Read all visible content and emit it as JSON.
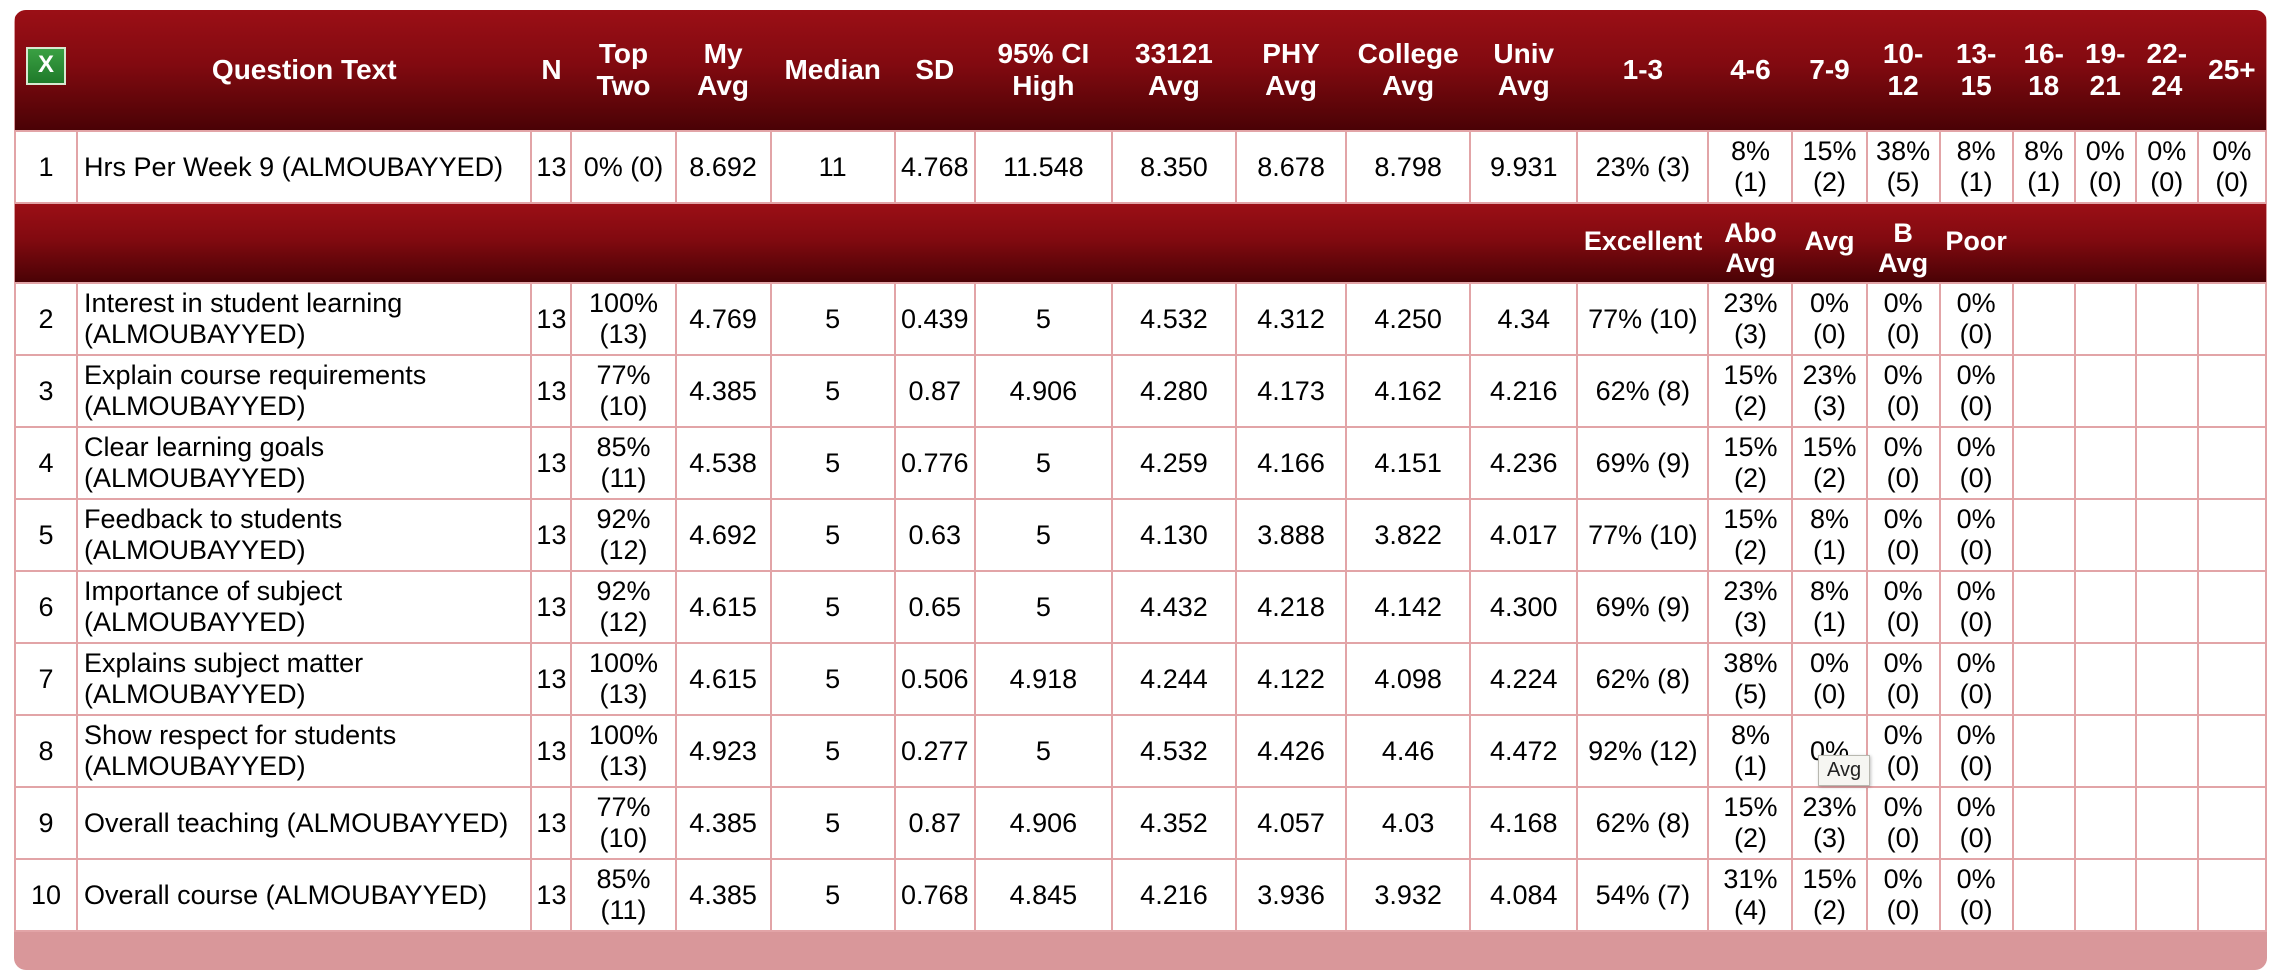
{
  "header": {
    "excel_icon": "excel-icon",
    "question_text": "Question Text",
    "n": "N",
    "top_two_1": "Top",
    "top_two_2": "Two",
    "my_avg_1": "My",
    "my_avg_2": "Avg",
    "median": "Median",
    "sd": "SD",
    "ci_1": "95% CI",
    "ci_2": "High",
    "course_avg_1": "33121",
    "course_avg_2": "Avg",
    "phy_avg_1": "PHY",
    "phy_avg_2": "Avg",
    "college_avg_1": "College",
    "college_avg_2": "Avg",
    "univ_avg_1": "Univ",
    "univ_avg_2": "Avg",
    "b1": "1-3",
    "b2": "4-6",
    "b3": "7-9",
    "b4_1": "10-",
    "b4_2": "12",
    "b5_1": "13-",
    "b5_2": "15",
    "b6_1": "16-",
    "b6_2": "18",
    "b7_1": "19-",
    "b7_2": "21",
    "b8_1": "22-",
    "b8_2": "24",
    "b9": "25+"
  },
  "header2": {
    "excellent": "Excellent",
    "above_avg_1": "Abo",
    "above_avg_2": "Avg",
    "avg": "Avg",
    "below_avg_1": "B",
    "below_avg_2": "Avg",
    "poor": "Poor"
  },
  "row1": {
    "idx": "1",
    "question": "Hrs Per Week 9 (ALMOUBAYYED)",
    "n": "13",
    "top_two": "0% (0)",
    "my_avg": "8.692",
    "median": "11",
    "sd": "4.768",
    "ci": "11.548",
    "course_avg": "8.350",
    "phy_avg": "8.678",
    "college_avg": "8.798",
    "univ_avg": "9.931",
    "b1": "23% (3)",
    "b2a": "8%",
    "b2b": "(1)",
    "b3a": "15%",
    "b3b": "(2)",
    "b4a": "38%",
    "b4b": "(5)",
    "b5a": "8%",
    "b5b": "(1)",
    "b6a": "8%",
    "b6b": "(1)",
    "b7a": "0%",
    "b7b": "(0)",
    "b8a": "0%",
    "b8b": "(0)",
    "b9a": "0%",
    "b9b": "(0)"
  },
  "rows": [
    {
      "idx": "2",
      "q1": "Interest in student learning",
      "q2": "(ALMOUBAYYED)",
      "n": "13",
      "ta": "100%",
      "tb": "(13)",
      "my_avg": "4.769",
      "median": "5",
      "sd": "0.439",
      "ci": "5",
      "course_avg": "4.532",
      "phy_avg": "4.312",
      "college_avg": "4.250",
      "univ_avg": "4.34",
      "exc": "77% (10)",
      "aa": "23%",
      "ab": "(3)",
      "va": "0%",
      "vb": "(0)",
      "ba": "0%",
      "bb": "(0)",
      "pa": "0%",
      "pb": "(0)"
    },
    {
      "idx": "3",
      "q1": "Explain course requirements",
      "q2": "(ALMOUBAYYED)",
      "n": "13",
      "ta": "77%",
      "tb": "(10)",
      "my_avg": "4.385",
      "median": "5",
      "sd": "0.87",
      "ci": "4.906",
      "course_avg": "4.280",
      "phy_avg": "4.173",
      "college_avg": "4.162",
      "univ_avg": "4.216",
      "exc": "62% (8)",
      "aa": "15%",
      "ab": "(2)",
      "va": "23%",
      "vb": "(3)",
      "ba": "0%",
      "bb": "(0)",
      "pa": "0%",
      "pb": "(0)"
    },
    {
      "idx": "4",
      "q1": "Clear learning goals",
      "q2": "(ALMOUBAYYED)",
      "n": "13",
      "ta": "85%",
      "tb": "(11)",
      "my_avg": "4.538",
      "median": "5",
      "sd": "0.776",
      "ci": "5",
      "course_avg": "4.259",
      "phy_avg": "4.166",
      "college_avg": "4.151",
      "univ_avg": "4.236",
      "exc": "69% (9)",
      "aa": "15%",
      "ab": "(2)",
      "va": "15%",
      "vb": "(2)",
      "ba": "0%",
      "bb": "(0)",
      "pa": "0%",
      "pb": "(0)"
    },
    {
      "idx": "5",
      "q1": "Feedback to students",
      "q2": "(ALMOUBAYYED)",
      "n": "13",
      "ta": "92%",
      "tb": "(12)",
      "my_avg": "4.692",
      "median": "5",
      "sd": "0.63",
      "ci": "5",
      "course_avg": "4.130",
      "phy_avg": "3.888",
      "college_avg": "3.822",
      "univ_avg": "4.017",
      "exc": "77% (10)",
      "aa": "15%",
      "ab": "(2)",
      "va": "8%",
      "vb": "(1)",
      "ba": "0%",
      "bb": "(0)",
      "pa": "0%",
      "pb": "(0)"
    },
    {
      "idx": "6",
      "q1": "Importance of subject",
      "q2": "(ALMOUBAYYED)",
      "n": "13",
      "ta": "92%",
      "tb": "(12)",
      "my_avg": "4.615",
      "median": "5",
      "sd": "0.65",
      "ci": "5",
      "course_avg": "4.432",
      "phy_avg": "4.218",
      "college_avg": "4.142",
      "univ_avg": "4.300",
      "exc": "69% (9)",
      "aa": "23%",
      "ab": "(3)",
      "va": "8%",
      "vb": "(1)",
      "ba": "0%",
      "bb": "(0)",
      "pa": "0%",
      "pb": "(0)"
    },
    {
      "idx": "7",
      "q1": "Explains subject matter",
      "q2": "(ALMOUBAYYED)",
      "n": "13",
      "ta": "100%",
      "tb": "(13)",
      "my_avg": "4.615",
      "median": "5",
      "sd": "0.506",
      "ci": "4.918",
      "course_avg": "4.244",
      "phy_avg": "4.122",
      "college_avg": "4.098",
      "univ_avg": "4.224",
      "exc": "62% (8)",
      "aa": "38%",
      "ab": "(5)",
      "va": "0%",
      "vb": "(0)",
      "ba": "0%",
      "bb": "(0)",
      "pa": "0%",
      "pb": "(0)"
    },
    {
      "idx": "8",
      "q1": "Show respect for students",
      "q2": "(ALMOUBAYYED)",
      "n": "13",
      "ta": "100%",
      "tb": "(13)",
      "my_avg": "4.923",
      "median": "5",
      "sd": "0.277",
      "ci": "5",
      "course_avg": "4.532",
      "phy_avg": "4.426",
      "college_avg": "4.46",
      "univ_avg": "4.472",
      "exc": "92% (12)",
      "aa": "8%",
      "ab": "(1)",
      "va": "0%",
      "vb": "",
      "ba": "0%",
      "bb": "(0)",
      "pa": "0%",
      "pb": "(0)"
    },
    {
      "idx": "9",
      "q1": "Overall teaching (ALMOUBAYYED)",
      "q2": "",
      "n": "13",
      "ta": "77%",
      "tb": "(10)",
      "my_avg": "4.385",
      "median": "5",
      "sd": "0.87",
      "ci": "4.906",
      "course_avg": "4.352",
      "phy_avg": "4.057",
      "college_avg": "4.03",
      "univ_avg": "4.168",
      "exc": "62% (8)",
      "aa": "15%",
      "ab": "(2)",
      "va": "23%",
      "vb": "(3)",
      "ba": "0%",
      "bb": "(0)",
      "pa": "0%",
      "pb": "(0)"
    },
    {
      "idx": "10",
      "q1": "Overall course (ALMOUBAYYED)",
      "q2": "",
      "n": "13",
      "ta": "85%",
      "tb": "(11)",
      "my_avg": "4.385",
      "median": "5",
      "sd": "0.768",
      "ci": "4.845",
      "course_avg": "4.216",
      "phy_avg": "3.936",
      "college_avg": "3.932",
      "univ_avg": "4.084",
      "exc": "54% (7)",
      "aa": "31%",
      "ab": "(4)",
      "va": "15%",
      "vb": "(2)",
      "ba": "0%",
      "bb": "(0)",
      "pa": "0%",
      "pb": "(0)"
    }
  ],
  "tooltip": "Avg",
  "colors": {
    "header_dark": "#4a0205",
    "header_light": "#9b0f16",
    "grid_line": "#e2a4a7",
    "footer_band": "#d9979a"
  }
}
